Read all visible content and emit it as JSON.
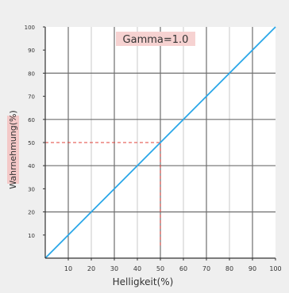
{
  "chart_data": {
    "type": "line",
    "title": "Gamma=1.0",
    "xlabel": "Helligkeit(%)",
    "ylabel": "Wahrnehmung(%)",
    "xlim": [
      0,
      100
    ],
    "ylim": [
      0,
      100
    ],
    "xticks": [
      "10",
      "20",
      "30",
      "40",
      "50",
      "60",
      "70",
      "80",
      "90",
      "100"
    ],
    "yticks": [
      "10",
      "20",
      "30",
      "40",
      "50",
      "60",
      "70",
      "80",
      "90",
      "100"
    ],
    "grid": true,
    "series": [
      {
        "x": [
          0,
          100
        ],
        "y": [
          0,
          100
        ],
        "color": "#2aa7e8"
      }
    ],
    "annotations": [
      {
        "type": "dashed-guide",
        "x": 50,
        "y": 50,
        "color": "#e0403a"
      }
    ],
    "colors": {
      "background": "#efefef",
      "plot_background": "#ffffff",
      "grid_dark": "#6f6f6f",
      "grid_light": "#c8c8c8",
      "label_bg": "#f4c9c8",
      "title_bg": "#f6d2d1"
    }
  }
}
